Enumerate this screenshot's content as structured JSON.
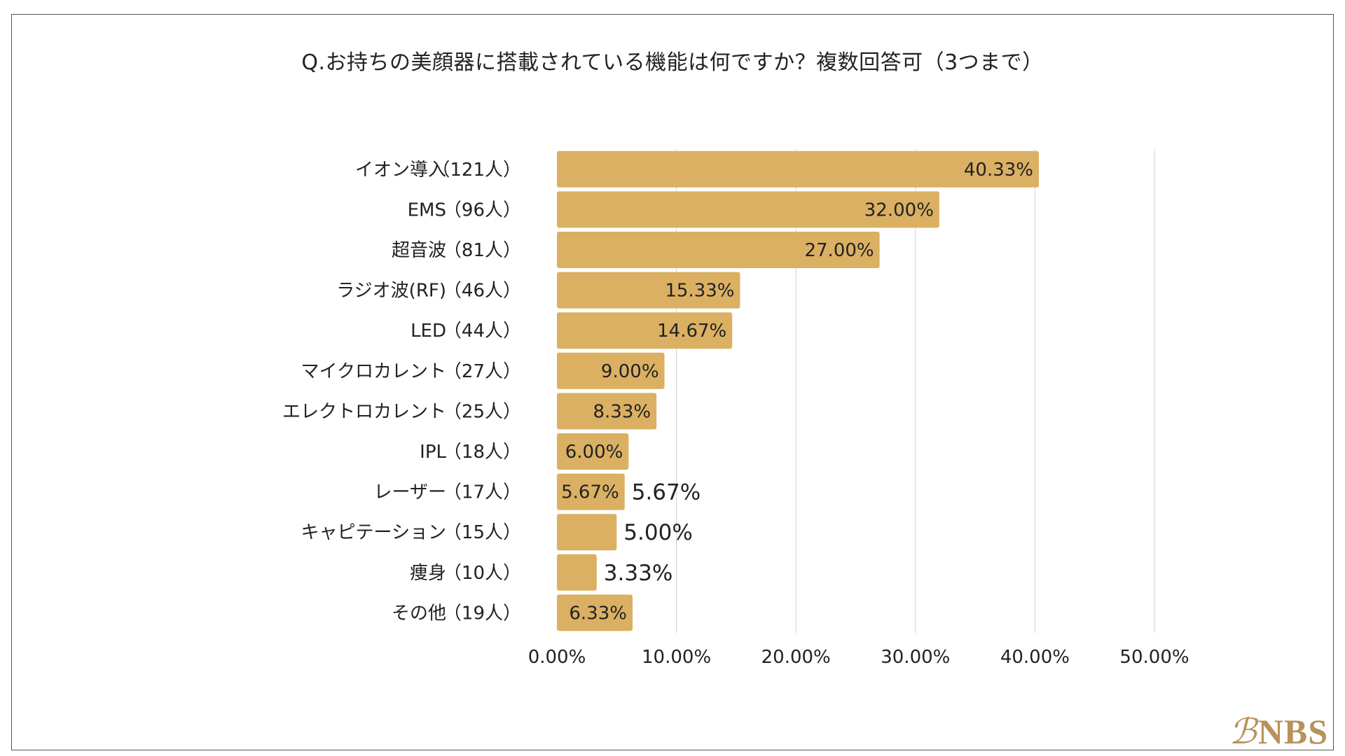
{
  "chart_data": {
    "type": "bar",
    "orientation": "horizontal",
    "title": "Q.お持ちの美顔器に搭載されている機能は何ですか？複数回答可（3つまで）",
    "categories": [
      {
        "name": "イオン導入",
        "count": "（121人）",
        "value": 40.33,
        "label": "40.33%"
      },
      {
        "name": "EMS",
        "count": "（96人）",
        "value": 32.0,
        "label": "32.00%"
      },
      {
        "name": "超音波",
        "count": "（81人）",
        "value": 27.0,
        "label": "27.00%"
      },
      {
        "name": "ラジオ波(RF)",
        "count": "（46人）",
        "value": 15.33,
        "label": "15.33%"
      },
      {
        "name": "LED",
        "count": "（44人）",
        "value": 14.67,
        "label": "14.67%"
      },
      {
        "name": "マイクロカレント",
        "count": "（27人）",
        "value": 9.0,
        "label": "9.00%"
      },
      {
        "name": "エレクトロカレント",
        "count": "（25人）",
        "value": 8.33,
        "label": "8.33%"
      },
      {
        "name": "IPL",
        "count": "（18人）",
        "value": 6.0,
        "label": "6.00%"
      },
      {
        "name": "レーザー",
        "count": "（17人）",
        "value": 5.67,
        "label": "5.67%",
        "extra_label": "5.67%"
      },
      {
        "name": "キャピテーション",
        "count": "（15人）",
        "value": 5.0,
        "label": "5.00%",
        "label_outside": true
      },
      {
        "name": "痩身",
        "count": "（10人）",
        "value": 3.33,
        "label": "3.33%",
        "label_outside": true
      },
      {
        "name": "その他",
        "count": "（19人）",
        "value": 6.33,
        "label": "6.33%"
      }
    ],
    "xlim": [
      0,
      50
    ],
    "xticks": [
      "0.00%",
      "10.00%",
      "20.00%",
      "30.00%",
      "40.00%",
      "50.00%"
    ],
    "xtick_values": [
      0,
      10,
      20,
      30,
      40,
      50
    ],
    "grid": true,
    "bar_color": "#dbb063",
    "grid_color": "#d9d9d9"
  },
  "brand": {
    "mark": "ℬ",
    "text": "NBS"
  }
}
